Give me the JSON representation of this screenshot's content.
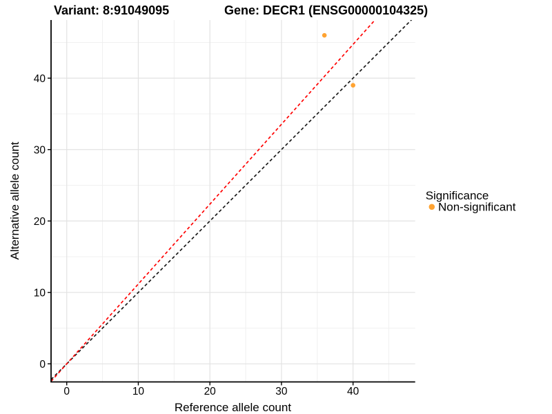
{
  "chart_data": {
    "type": "scatter",
    "titles": [
      "Variant: 8:91049095",
      "Gene: DECR1 (ENSG00000104325)"
    ],
    "xlabel": "Reference allele count",
    "ylabel": "Alternative allele count",
    "xlim": [
      -2.19,
      48.68
    ],
    "ylim": [
      -2.53,
      48.14
    ],
    "xticks": [
      0,
      10,
      20,
      30,
      40
    ],
    "yticks": [
      0,
      10,
      20,
      30,
      40
    ],
    "xminor": [
      5,
      15,
      25,
      35,
      45
    ],
    "yminor": [
      5,
      15,
      25,
      35,
      45
    ],
    "grid": {
      "major_color": "#E2E2E2",
      "minor_color": "#F0F0F0"
    },
    "points": [
      {
        "x": 36,
        "y": 46,
        "significance": "Non-significant"
      },
      {
        "x": 40,
        "y": 39,
        "significance": "Non-significant"
      }
    ],
    "point_color": "#FFA332",
    "lines": [
      {
        "name": "identity",
        "slope": 1,
        "intercept": 0,
        "color": "#1A1A1A"
      },
      {
        "name": "allelic-ratio",
        "slope": 1.118,
        "intercept": 0,
        "color": "#FF0000"
      }
    ],
    "legend": {
      "title": "Significance",
      "items": [
        {
          "label": "Non-significant",
          "color": "#FFA332"
        }
      ]
    }
  }
}
